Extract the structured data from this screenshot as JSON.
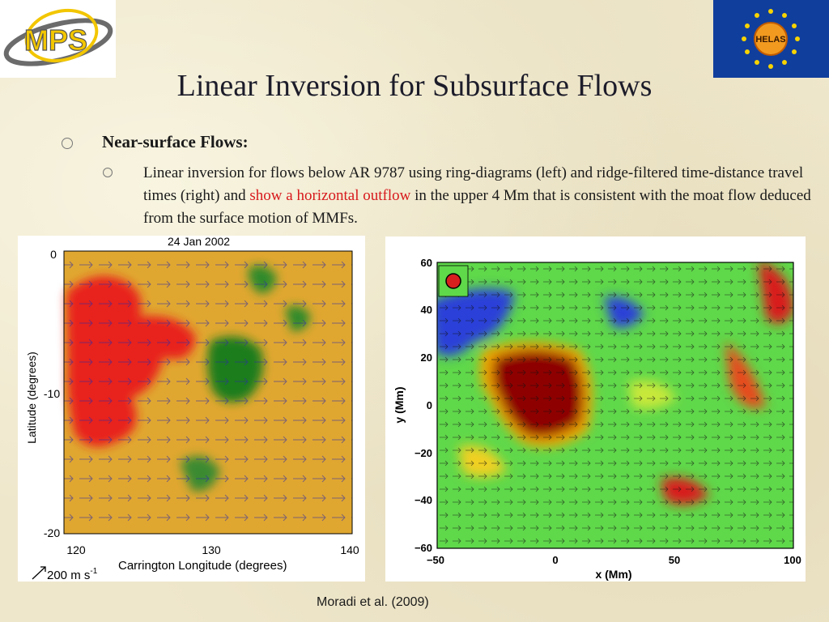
{
  "slide": {
    "title": "Linear Inversion for Subsurface Flows",
    "bullet1": "Near-surface Flows:",
    "body_part1": "Linear inversion for flows below AR 9787 using ring-diagrams (left) and ridge-filtered time-distance travel times (right) and ",
    "body_highlight": "show a horizontal outflow",
    "body_part2": " in the upper 4 Mm that is consistent with the moat flow deduced from the surface motion of MMFs.",
    "caption": "Moradi et al. (2009)",
    "highlight_color": "#d7191c"
  },
  "logos": {
    "left_text": "MPS",
    "right_text": "HELAS"
  },
  "figure_left": {
    "date": "24 Jan   2002",
    "ylabel": "Latitude (degrees)",
    "xlabel": "Carrington Longitude (degrees)",
    "xticks": [
      "120",
      "130",
      "140"
    ],
    "yticks": [
      "0",
      "-10",
      "-20"
    ],
    "scale_label": "200 m s",
    "scale_sup": "-1"
  },
  "figure_right": {
    "ylabel": "y (Mm)",
    "xlabel": "x (Mm)",
    "xticks": [
      "−50",
      "0",
      "50",
      "100"
    ],
    "yticks": [
      "60",
      "40",
      "20",
      "0",
      "−20",
      "−40",
      "−60"
    ]
  }
}
